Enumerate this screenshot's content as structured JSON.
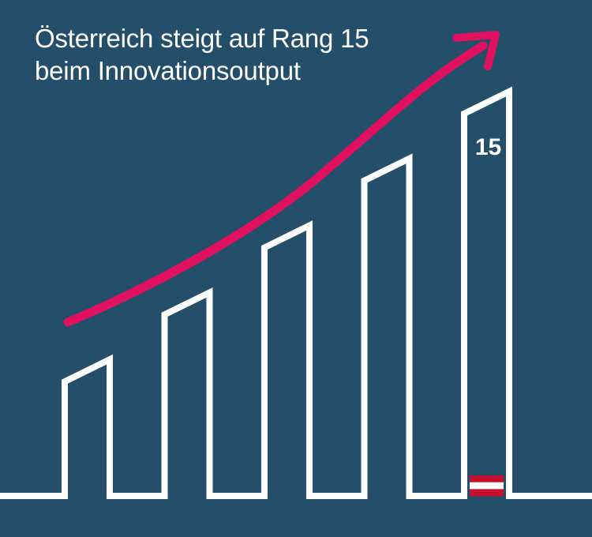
{
  "title_lines": [
    "Österreich steigt auf Rang 15",
    "beim Innovationsoutput"
  ],
  "colors": {
    "background": "#234f6a",
    "outline": "#ffffff",
    "arrow": "#e0115f",
    "flag_red": "#c8102e",
    "flag_white": "#ffffff"
  },
  "chart_data": {
    "type": "bar",
    "categories": [
      "",
      "",
      "",
      "",
      ""
    ],
    "values": [
      1,
      2,
      3,
      4,
      5
    ],
    "highlight_index": 4,
    "highlight_label": "15",
    "highlight_flag": "austria-flag-icon",
    "trend_arrow": "upward"
  }
}
